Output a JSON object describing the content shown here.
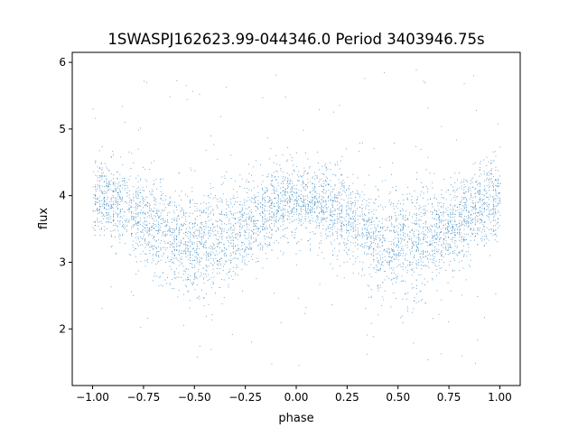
{
  "chart_data": {
    "type": "scatter",
    "title": "1SWASPJ162623.99-044346.0 Period 3403946.75s",
    "xlabel": "phase",
    "ylabel": "flux",
    "xlim": [
      -1.1,
      1.1
    ],
    "ylim": [
      1.15,
      6.15
    ],
    "xticks": [
      -1.0,
      -0.75,
      -0.5,
      -0.25,
      0.0,
      0.25,
      0.5,
      0.75,
      1.0
    ],
    "xtick_labels": [
      "−1.00",
      "−0.75",
      "−0.50",
      "−0.25",
      "0.00",
      "0.25",
      "0.50",
      "0.75",
      "1.00"
    ],
    "yticks": [
      2,
      3,
      4,
      5,
      6
    ],
    "ytick_labels": [
      "2",
      "3",
      "4",
      "5",
      "6"
    ],
    "grid": false,
    "marker_color": "#1f77b4",
    "series": [
      {
        "phase": [
          -1.0,
          -0.95,
          -0.9,
          -0.85,
          -0.8,
          -0.75,
          -0.7,
          -0.65,
          -0.6,
          -0.55,
          -0.5,
          -0.45,
          -0.4,
          -0.35,
          -0.3,
          -0.25,
          -0.2,
          -0.15,
          -0.1,
          -0.05,
          0.0,
          0.05,
          0.1,
          0.15,
          0.2,
          0.25,
          0.3,
          0.35,
          0.4,
          0.45,
          0.5,
          0.55,
          0.6,
          0.65,
          0.7,
          0.75,
          0.8,
          0.85,
          0.9,
          0.95,
          1.0
        ],
        "flux_median": [
          3.95,
          3.95,
          3.9,
          3.85,
          3.75,
          3.65,
          3.55,
          3.45,
          3.35,
          3.3,
          3.3,
          3.3,
          3.35,
          3.4,
          3.45,
          3.55,
          3.65,
          3.75,
          3.85,
          3.95,
          3.95,
          3.95,
          3.9,
          3.85,
          3.75,
          3.65,
          3.55,
          3.45,
          3.35,
          3.3,
          3.3,
          3.3,
          3.35,
          3.4,
          3.45,
          3.55,
          3.65,
          3.75,
          3.85,
          3.95,
          3.95
        ],
        "flux_spread": [
          0.3,
          0.3,
          0.3,
          0.3,
          0.32,
          0.32,
          0.32,
          0.33,
          0.35,
          0.38,
          0.4,
          0.42,
          0.4,
          0.38,
          0.35,
          0.33,
          0.32,
          0.32,
          0.3,
          0.3,
          0.3,
          0.3,
          0.3,
          0.3,
          0.32,
          0.32,
          0.32,
          0.33,
          0.35,
          0.38,
          0.4,
          0.42,
          0.4,
          0.38,
          0.35,
          0.33,
          0.32,
          0.32,
          0.3,
          0.3,
          0.3
        ]
      }
    ]
  }
}
